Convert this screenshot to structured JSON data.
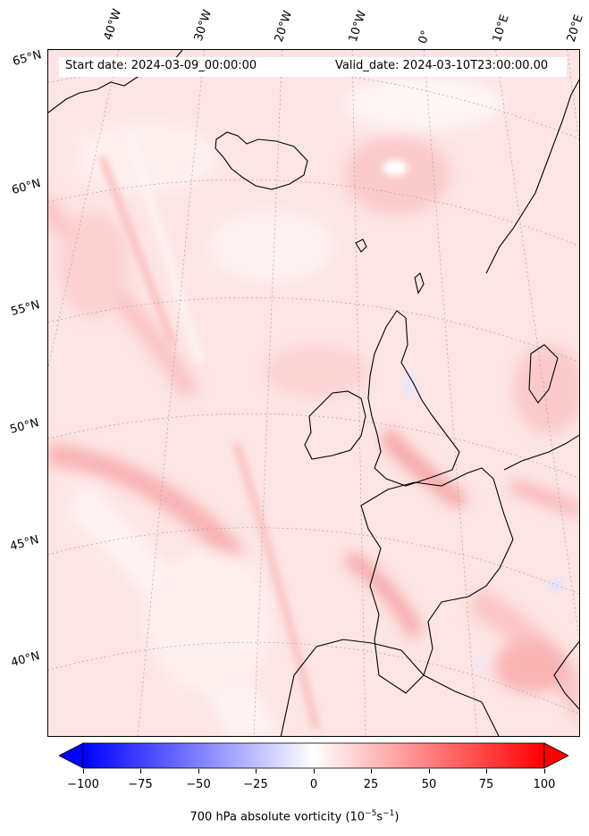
{
  "map": {
    "start_date": "Start date: 2024-03-09_00:00:00",
    "valid_date": "Valid_date: 2024-03-10T23:00:00.00",
    "lon_labels": [
      "40°W",
      "30°W",
      "20°W",
      "10°W",
      "0°",
      "10°E",
      "20°E"
    ],
    "lat_labels": [
      "65°N",
      "60°N",
      "55°N",
      "50°N",
      "45°N",
      "40°N"
    ],
    "field": "700 hPa absolute vorticity",
    "colormap": "bwr",
    "colors": {
      "min": "#0000ff",
      "mid": "#ffffff",
      "max": "#ff0000",
      "coast": "#000000",
      "grid": "#999999"
    }
  },
  "colorbar": {
    "label_text": "700 hPa absolute vorticity (10",
    "label_exp1": "−5",
    "label_mid": "s",
    "label_exp2": "−1",
    "label_close": ")",
    "vmin": -100,
    "vmax": 100,
    "extend": "both",
    "ticks": [
      "−100",
      "−75",
      "−50",
      "−25",
      "0",
      "25",
      "50",
      "75",
      "100"
    ]
  }
}
